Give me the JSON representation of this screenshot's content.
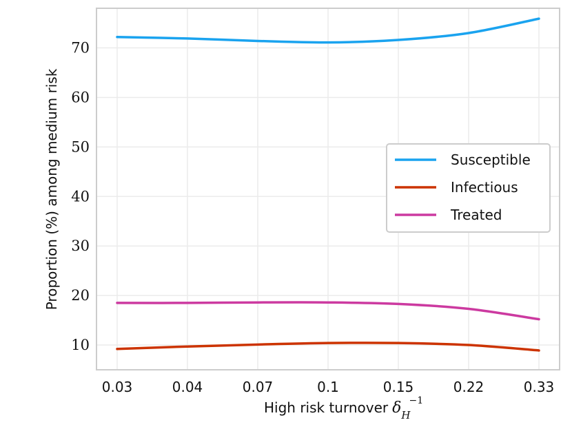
{
  "chart_data": {
    "type": "line",
    "title": "",
    "xlabel": "High risk turnover",
    "xlabel_symbol": "δ",
    "xlabel_sub": "H",
    "xlabel_sup": "−1",
    "ylabel": "Proportion (%) among medium risk",
    "categories": [
      "0.03",
      "0.04",
      "0.07",
      "0.1",
      "0.15",
      "0.22",
      "0.33"
    ],
    "yticks": [
      10,
      20,
      30,
      40,
      50,
      60,
      70
    ],
    "ylim": [
      5,
      78
    ],
    "grid": true,
    "legend_position": "center-right",
    "series": [
      {
        "name": "Susceptible",
        "color": "#1aa3ef",
        "values": [
          72.2,
          71.9,
          71.4,
          71.1,
          71.6,
          73.0,
          75.9
        ]
      },
      {
        "name": "Infectious",
        "color": "#cc3300",
        "values": [
          9.2,
          9.7,
          10.1,
          10.4,
          10.4,
          10.0,
          8.9
        ]
      },
      {
        "name": "Treated",
        "color": "#cc3aa0",
        "values": [
          18.5,
          18.5,
          18.6,
          18.6,
          18.3,
          17.3,
          15.2
        ]
      }
    ]
  }
}
